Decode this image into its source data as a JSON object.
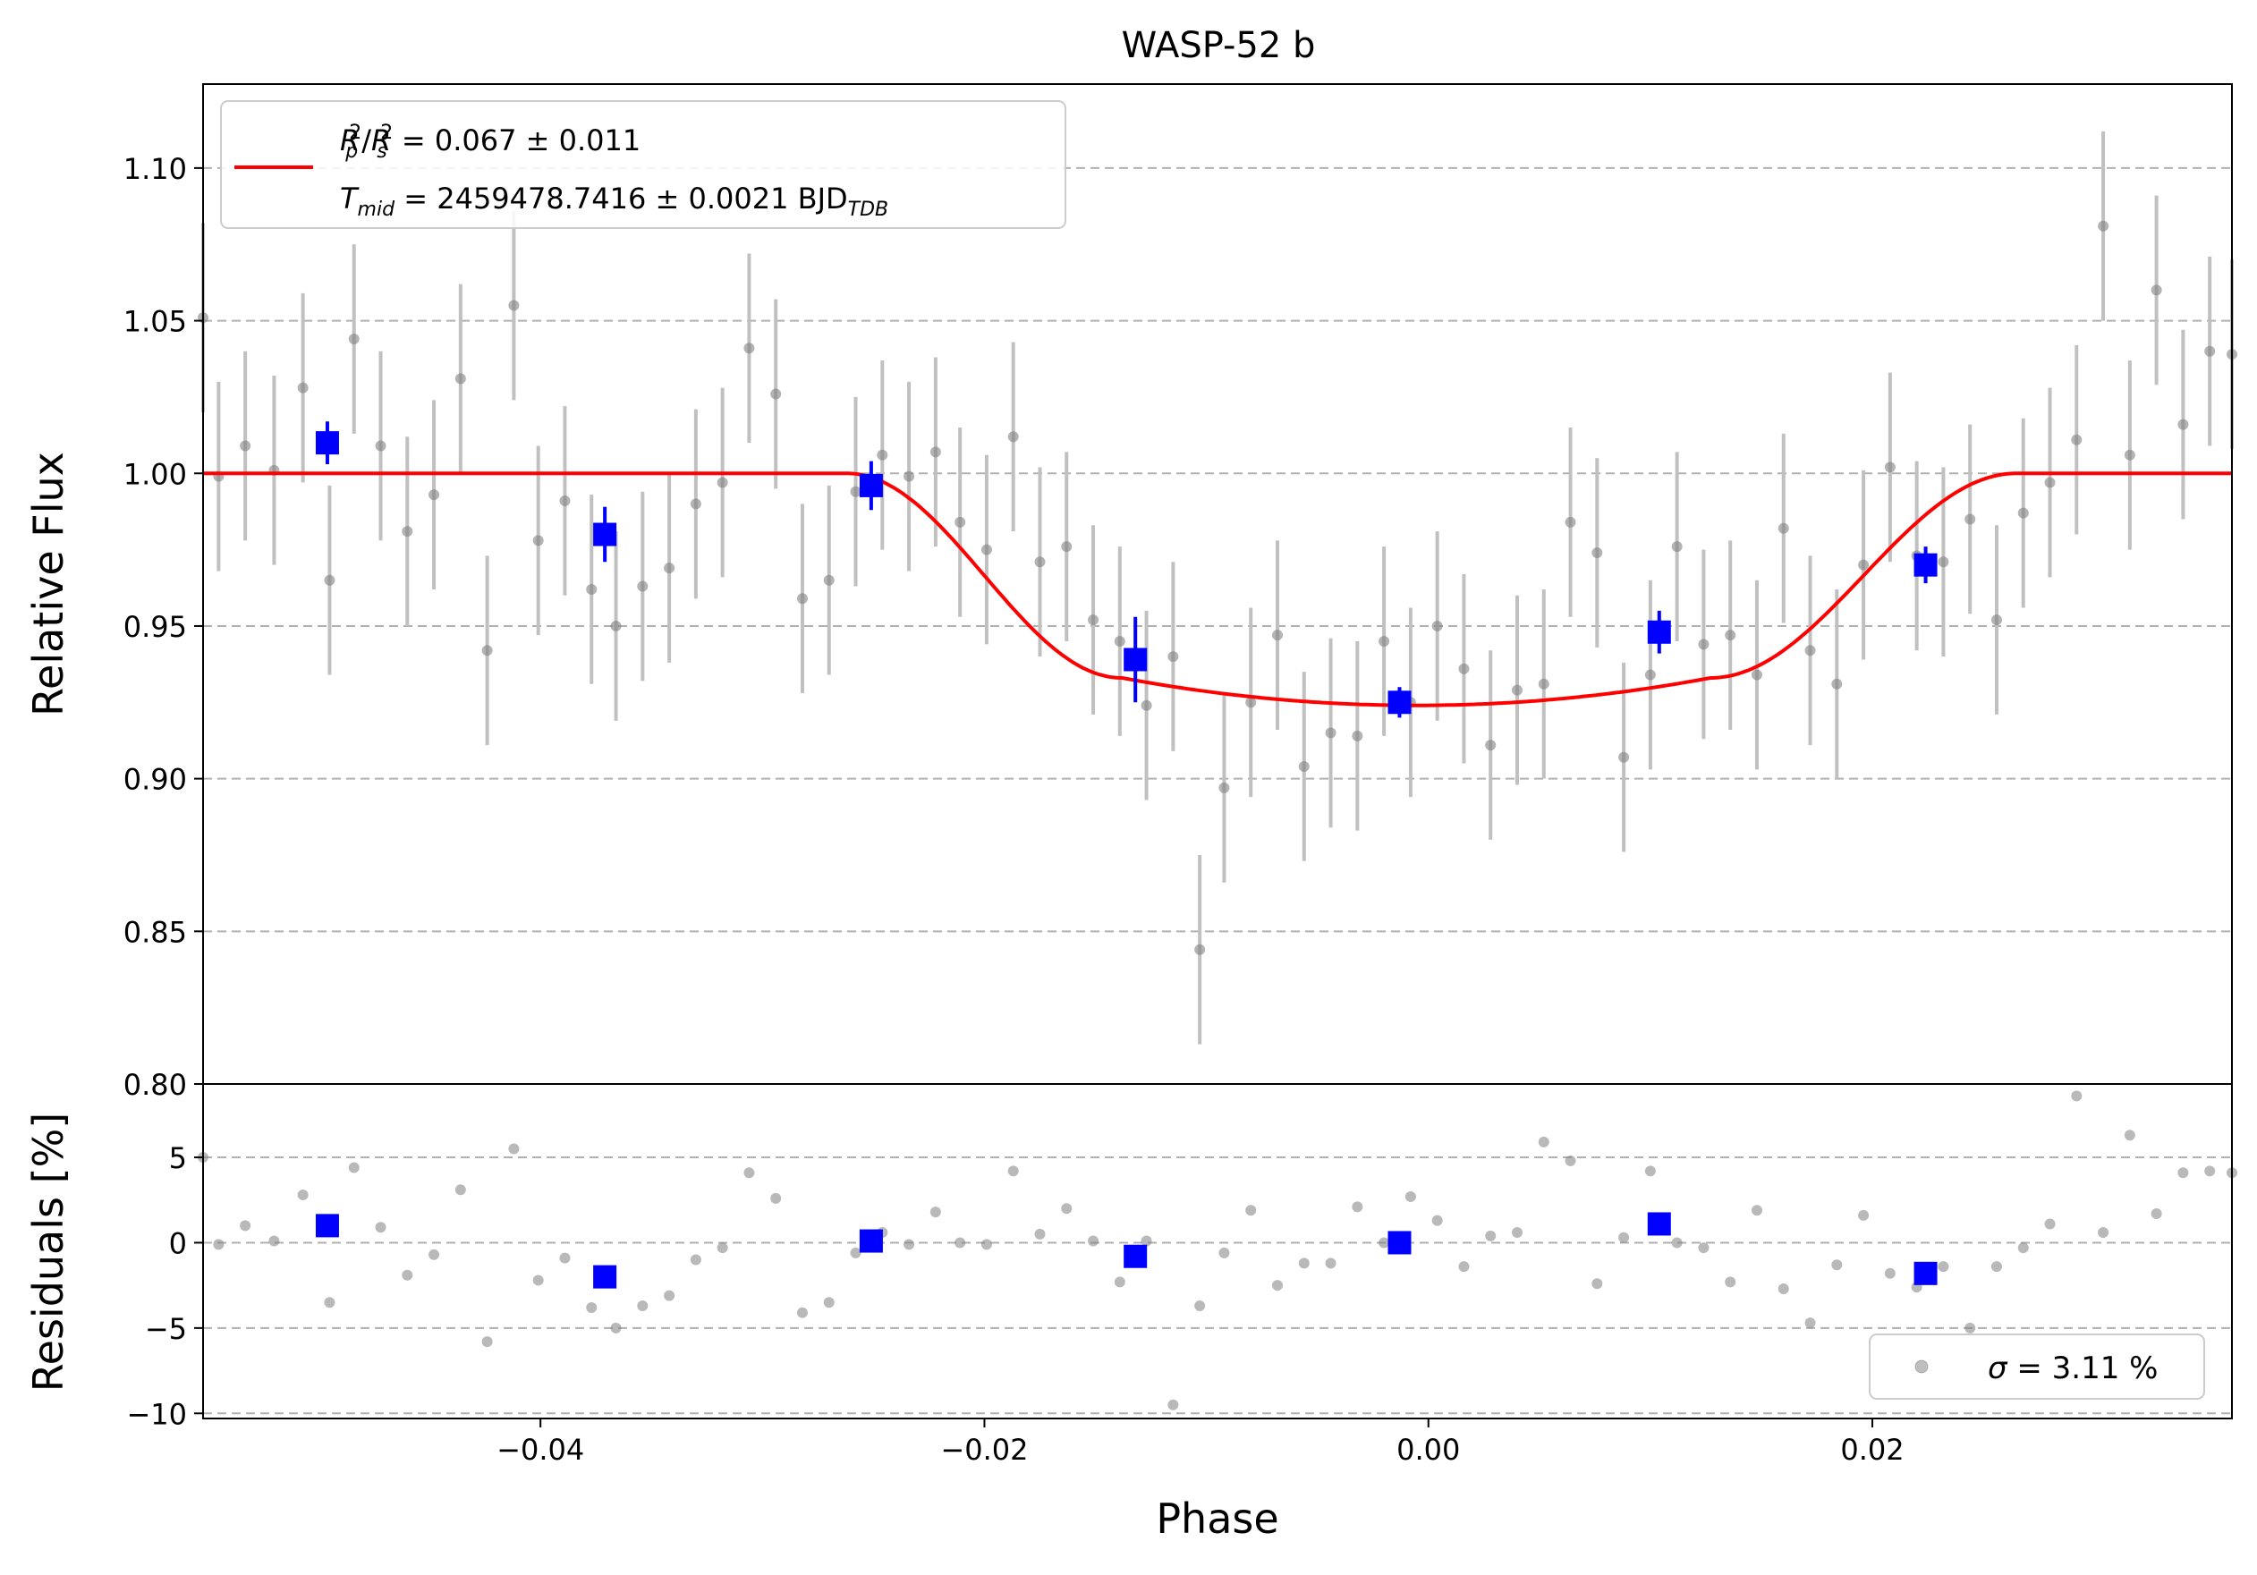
{
  "chart_data": [
    {
      "type": "scatter",
      "title": "WASP-52 b",
      "xlabel": "Phase",
      "ylabel": "Relative Flux",
      "xlim": [
        -0.0552,
        0.0362
      ],
      "ylim": [
        0.8,
        1.1275
      ],
      "xticks": [
        -0.04,
        -0.02,
        0.0,
        0.02
      ],
      "xtick_labels": [
        "−0.04",
        "−0.02",
        "0.00",
        "0.02"
      ],
      "yticks": [
        0.8,
        0.85,
        0.9,
        0.95,
        1.0,
        1.05,
        1.1
      ],
      "ytick_labels": [
        "0.80",
        "0.85",
        "0.90",
        "0.95",
        "1.00",
        "1.05",
        "1.10"
      ],
      "grid": "horizontal dashed",
      "legend_position": "top-left",
      "legend": {
        "line1": {
          "parts": [
            {
              "t": "R",
              "i": true
            },
            {
              "t": "2",
              "sup": true,
              "dx": -12
            },
            {
              "t": "p",
              "i": true,
              "sub": true,
              "dx": -18
            },
            {
              "t": "/",
              "dx": 4
            },
            {
              "t": "R",
              "i": true
            },
            {
              "t": "2",
              "sup": true,
              "dx": -12
            },
            {
              "t": "s",
              "i": true,
              "sub": true,
              "dx": -18
            },
            {
              "t": " = 0.067 ± 0.011",
              "dx": 6
            }
          ]
        },
        "line2": {
          "parts": [
            {
              "t": "T",
              "i": true
            },
            {
              "t": "mid",
              "i": true,
              "sub": true
            },
            {
              "t": " = 2459478.7416 ± 0.0021 BJD"
            },
            {
              "t": "TDB",
              "i": true,
              "sub": true
            }
          ]
        }
      },
      "colors": {
        "model": "#ff0000",
        "binned": "#0000ff",
        "raw": "#808080",
        "errorbar": "#c0c0c0",
        "grid": "#b0b0b0"
      },
      "model": {
        "name": "transit model",
        "x_start": -0.0552,
        "x_end": 0.0362,
        "ingress_start": -0.0262,
        "ingress_end": -0.0138,
        "egress_start": 0.0127,
        "egress_end": 0.0265,
        "baseline": 1.0,
        "bottom": 0.924
      },
      "raw_points": {
        "x": [
          -0.0552,
          -0.0545,
          -0.0533,
          -0.052,
          -0.0507,
          -0.0495,
          -0.0484,
          -0.0472,
          -0.046,
          -0.0448,
          -0.0436,
          -0.0424,
          -0.0412,
          -0.0401,
          -0.0389,
          -0.0377,
          -0.0366,
          -0.0354,
          -0.0342,
          -0.033,
          -0.0318,
          -0.0306,
          -0.0294,
          -0.0282,
          -0.027,
          -0.0258,
          -0.0246,
          -0.0234,
          -0.0222,
          -0.0211,
          -0.0199,
          -0.0187,
          -0.0175,
          -0.0163,
          -0.0151,
          -0.0139,
          -0.0127,
          -0.0115,
          -0.0103,
          -0.0092,
          -0.008,
          -0.0068,
          -0.0056,
          -0.0044,
          -0.0032,
          -0.002,
          -0.0008,
          0.0004,
          0.0016,
          0.0028,
          0.004,
          0.0052,
          0.0064,
          0.0076,
          0.0088,
          0.01,
          0.0112,
          0.0124,
          0.0136,
          0.0148,
          0.016,
          0.0172,
          0.0184,
          0.0196,
          0.0208,
          0.022,
          0.0232,
          0.0244,
          0.0256,
          0.0268,
          0.028,
          0.0292,
          0.0304,
          0.0316,
          0.0328,
          0.034,
          0.0352,
          0.0362
        ],
        "y": [
          1.051,
          0.999,
          1.009,
          1.001,
          1.028,
          0.965,
          1.044,
          1.009,
          0.981,
          0.993,
          1.031,
          0.942,
          1.055,
          0.978,
          0.991,
          0.962,
          0.95,
          0.963,
          0.969,
          0.99,
          0.997,
          1.041,
          1.026,
          0.959,
          0.965,
          0.994,
          1.006,
          0.999,
          1.007,
          0.984,
          0.975,
          1.012,
          0.971,
          0.976,
          0.952,
          0.945,
          0.924,
          0.94,
          0.844,
          0.897,
          0.925,
          0.947,
          0.904,
          0.915,
          0.914,
          0.945,
          0.925,
          0.95,
          0.936,
          0.911,
          0.929,
          0.931,
          0.984,
          0.974,
          0.907,
          0.934,
          0.976,
          0.944,
          0.947,
          0.934,
          0.982,
          0.942,
          0.931,
          0.97,
          1.002,
          0.973,
          0.971,
          0.985,
          0.952,
          0.987,
          0.997,
          1.011,
          1.081,
          1.006,
          1.06,
          1.016,
          1.04,
          1.039
        ],
        "err": 0.031
      },
      "binned_points": {
        "x": [
          -0.0496,
          -0.0371,
          -0.0251,
          -0.0132,
          -0.0013,
          0.0104,
          0.0224
        ],
        "y": [
          1.01,
          0.98,
          0.996,
          0.939,
          0.925,
          0.948,
          0.97
        ],
        "err": [
          0.007,
          0.009,
          0.008,
          0.014,
          0.005,
          0.007,
          0.006
        ]
      }
    },
    {
      "type": "scatter",
      "xlabel": "Phase",
      "ylabel": "Residuals [%]",
      "xlim": [
        -0.0552,
        0.0362
      ],
      "ylim": [
        -10.3,
        9.3
      ],
      "yticks": [
        -10,
        -5,
        0,
        5
      ],
      "ytick_labels": [
        "−10",
        "−5",
        "0",
        "5"
      ],
      "grid": "horizontal dashed",
      "legend_position": "lower-right",
      "legend": {
        "parts": [
          {
            "t": "σ",
            "i": true
          },
          {
            "t": " = 3.11 %"
          }
        ]
      },
      "raw_points": {
        "y": [
          5.0,
          -0.1,
          1.0,
          0.1,
          2.8,
          -3.5,
          4.4,
          0.9,
          -1.9,
          -0.7,
          3.1,
          -5.8,
          5.5,
          -2.2,
          -0.9,
          -3.8,
          -5.0,
          -3.7,
          -3.1,
          -1.0,
          -0.3,
          4.1,
          2.6,
          -4.1,
          -3.5,
          -0.6,
          0.6,
          -0.1,
          1.8,
          0.0,
          -0.1,
          4.2,
          0.5,
          2.0,
          0.1,
          -2.3,
          0.1,
          -9.5,
          -3.7,
          -0.6,
          1.9,
          -2.5,
          -1.2,
          -1.2,
          2.1,
          0.0,
          2.7,
          1.3,
          -1.4,
          0.4,
          0.6,
          5.9,
          4.8,
          -2.4,
          0.3,
          4.2,
          0.0,
          -0.3,
          -2.3,
          1.9,
          -2.7,
          -4.7,
          -1.3,
          1.6,
          -1.8,
          -2.6,
          -1.4,
          -5.0,
          -1.4,
          -0.3,
          1.1,
          8.6,
          0.6,
          6.3,
          1.7,
          4.1,
          4.2,
          4.1
        ]
      },
      "binned_points": {
        "y": [
          1.0,
          -2.0,
          0.1,
          -0.8,
          0.0,
          1.1,
          -1.8
        ]
      }
    }
  ]
}
